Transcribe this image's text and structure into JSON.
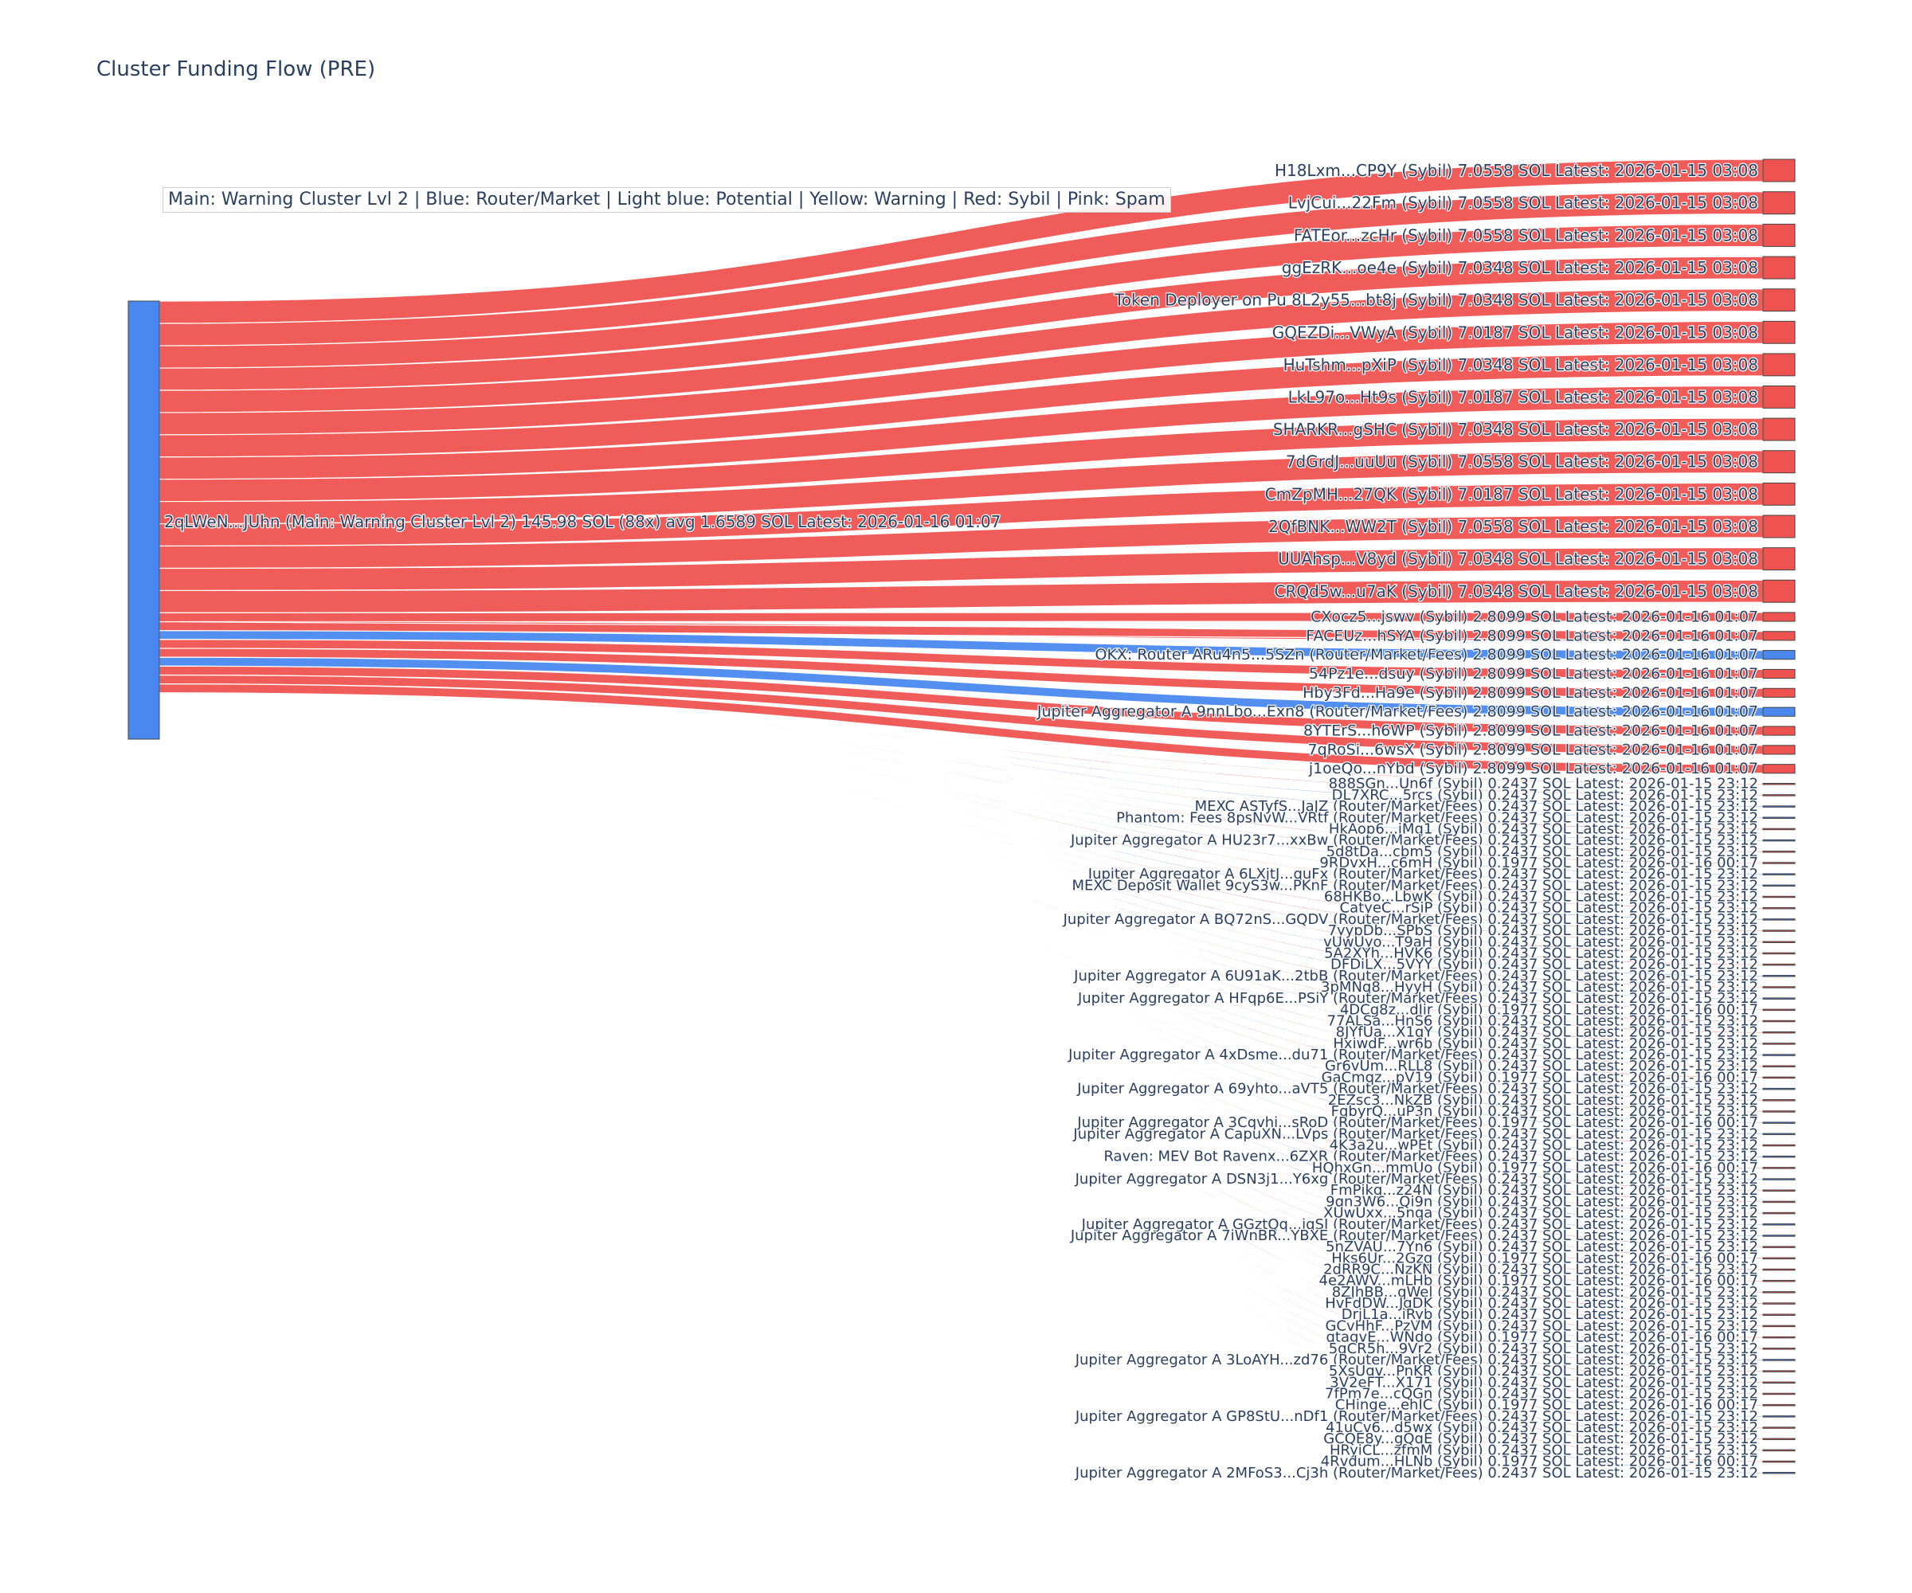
{
  "chart_title": "Cluster Funding Flow (PRE)",
  "legend_text": "Main: Warning Cluster Lvl 2  |  Blue: Router/Market | Light blue: Potential | Yellow: Warning | Red: Sybil | Pink: Spam",
  "colors": {
    "sybil": "#ef5350",
    "router": "#4a88f0",
    "text": "#2a3f5f"
  },
  "chart_data": {
    "type": "sankey",
    "title": "Cluster Funding Flow (PRE)",
    "source": {
      "label": "2qLWeN...JUhn (Main: Warning Cluster Lvl 2) 145.98 SOL (88x) avg 1.6589 SOL Latest: 2026-01-16 01:07",
      "category": "router",
      "total_sol": 145.98,
      "count": 88,
      "avg_sol": 1.6589
    },
    "targets": [
      {
        "label": "H18Lxm...CP9Y (Sybil) 7.0558 SOL Latest: 2026-01-15 03:08",
        "value": 7.0558,
        "category": "sybil"
      },
      {
        "label": "LvjCui...22Fm (Sybil) 7.0558 SOL Latest: 2026-01-15 03:08",
        "value": 7.0558,
        "category": "sybil"
      },
      {
        "label": "FATEor...zcHr (Sybil) 7.0558 SOL Latest: 2026-01-15 03:08",
        "value": 7.0558,
        "category": "sybil"
      },
      {
        "label": "ggEzRK...oe4e (Sybil) 7.0348 SOL Latest: 2026-01-15 03:08",
        "value": 7.0348,
        "category": "sybil"
      },
      {
        "label": "Token Deployer on Pu 8L2y55...bt8j (Sybil) 7.0348 SOL Latest: 2026-01-15 03:08",
        "value": 7.0348,
        "category": "sybil"
      },
      {
        "label": "GQEZDi...VWyA (Sybil) 7.0187 SOL Latest: 2026-01-15 03:08",
        "value": 7.0187,
        "category": "sybil"
      },
      {
        "label": "HuTshm...pXiP (Sybil) 7.0348 SOL Latest: 2026-01-15 03:08",
        "value": 7.0348,
        "category": "sybil"
      },
      {
        "label": "LkL97o...Ht9s (Sybil) 7.0187 SOL Latest: 2026-01-15 03:08",
        "value": 7.0187,
        "category": "sybil"
      },
      {
        "label": "SHARKR...gSHC (Sybil) 7.0348 SOL Latest: 2026-01-15 03:08",
        "value": 7.0348,
        "category": "sybil"
      },
      {
        "label": "7dGrdJ...uuUu (Sybil) 7.0558 SOL Latest: 2026-01-15 03:08",
        "value": 7.0558,
        "category": "sybil"
      },
      {
        "label": "CmZpMH...27QK (Sybil) 7.0187 SOL Latest: 2026-01-15 03:08",
        "value": 7.0187,
        "category": "sybil"
      },
      {
        "label": "2QfBNK...WW2T (Sybil) 7.0558 SOL Latest: 2026-01-15 03:08",
        "value": 7.0558,
        "category": "sybil"
      },
      {
        "label": "UUAhsp...V8yd (Sybil) 7.0348 SOL Latest: 2026-01-15 03:08",
        "value": 7.0348,
        "category": "sybil"
      },
      {
        "label": "CRQd5w...u7aK (Sybil) 7.0348 SOL Latest: 2026-01-15 03:08",
        "value": 7.0348,
        "category": "sybil"
      },
      {
        "label": "CXocz5...jswv (Sybil) 2.8099 SOL Latest: 2026-01-16 01:07",
        "value": 2.8099,
        "category": "sybil"
      },
      {
        "label": "FACEUz...hSYA (Sybil) 2.8099 SOL Latest: 2026-01-16 01:07",
        "value": 2.8099,
        "category": "sybil"
      },
      {
        "label": "OKX: Router ARu4n5...5SZn (Router/Market/Fees) 2.8099 SOL Latest: 2026-01-16 01:07",
        "value": 2.8099,
        "category": "router"
      },
      {
        "label": "54Pz1e...dsuy (Sybil) 2.8099 SOL Latest: 2026-01-16 01:07",
        "value": 2.8099,
        "category": "sybil"
      },
      {
        "label": "Hby3Fd...Ha9e (Sybil) 2.8099 SOL Latest: 2026-01-16 01:07",
        "value": 2.8099,
        "category": "sybil"
      },
      {
        "label": "Jupiter Aggregator A 9nnLbo...Exn8 (Router/Market/Fees) 2.8099 SOL Latest: 2026-01-16 01:07",
        "value": 2.8099,
        "category": "router"
      },
      {
        "label": "8YTErS...h6WP (Sybil) 2.8099 SOL Latest: 2026-01-16 01:07",
        "value": 2.8099,
        "category": "sybil"
      },
      {
        "label": "7qRoSi...6wsX (Sybil) 2.8099 SOL Latest: 2026-01-16 01:07",
        "value": 2.8099,
        "category": "sybil"
      },
      {
        "label": "j1oeQo...nYbd (Sybil) 2.8099 SOL Latest: 2026-01-16 01:07",
        "value": 2.8099,
        "category": "sybil"
      },
      {
        "label": "888SGn...Un6f (Sybil) 0.2437 SOL Latest: 2026-01-15 23:12",
        "value": 0.2437,
        "category": "sybil"
      },
      {
        "label": "DL7XRC...5rcs (Sybil) 0.2437 SOL Latest: 2026-01-15 23:12",
        "value": 0.2437,
        "category": "sybil"
      },
      {
        "label": "MEXC ASTyfS...JaJZ (Router/Market/Fees) 0.2437 SOL Latest: 2026-01-15 23:12",
        "value": 0.2437,
        "category": "router"
      },
      {
        "label": "Phantom: Fees 8psNvW...VRtf (Router/Market/Fees) 0.2437 SOL Latest: 2026-01-15 23:12",
        "value": 0.2437,
        "category": "router"
      },
      {
        "label": "HkAop6...iMq1 (Sybil) 0.2437 SOL Latest: 2026-01-15 23:12",
        "value": 0.2437,
        "category": "sybil"
      },
      {
        "label": "Jupiter Aggregator A HU23r7...xxBw (Router/Market/Fees) 0.2437 SOL Latest: 2026-01-15 23:12",
        "value": 0.2437,
        "category": "router"
      },
      {
        "label": "5d8tDa...cbm5 (Sybil) 0.2437 SOL Latest: 2026-01-15 23:12",
        "value": 0.2437,
        "category": "sybil"
      },
      {
        "label": "9RDvxH...c6mH (Sybil) 0.1977 SOL Latest: 2026-01-16 00:17",
        "value": 0.1977,
        "category": "sybil"
      },
      {
        "label": "Jupiter Aggregator A 6LXjtJ...quFx (Router/Market/Fees) 0.2437 SOL Latest: 2026-01-15 23:12",
        "value": 0.2437,
        "category": "router"
      },
      {
        "label": "MEXC Deposit Wallet 9cyS3w...PKnF (Router/Market/Fees) 0.2437 SOL Latest: 2026-01-15 23:12",
        "value": 0.2437,
        "category": "router"
      },
      {
        "label": "68HKBo...LbwK (Sybil) 0.2437 SOL Latest: 2026-01-15 23:12",
        "value": 0.2437,
        "category": "sybil"
      },
      {
        "label": "CatyeC...rSiP (Sybil) 0.2437 SOL Latest: 2026-01-15 23:12",
        "value": 0.2437,
        "category": "sybil"
      },
      {
        "label": "Jupiter Aggregator A BQ72nS...GQDV (Router/Market/Fees) 0.2437 SOL Latest: 2026-01-15 23:12",
        "value": 0.2437,
        "category": "router"
      },
      {
        "label": "7yypDb...SPbS (Sybil) 0.2437 SOL Latest: 2026-01-15 23:12",
        "value": 0.2437,
        "category": "sybil"
      },
      {
        "label": "vUwUyo...T9aH (Sybil) 0.2437 SOL Latest: 2026-01-15 23:12",
        "value": 0.2437,
        "category": "sybil"
      },
      {
        "label": "5A2XYh...HVK6 (Sybil) 0.2437 SOL Latest: 2026-01-15 23:12",
        "value": 0.2437,
        "category": "sybil"
      },
      {
        "label": "DFDiLX...5VYY (Sybil) 0.2437 SOL Latest: 2026-01-15 23:12",
        "value": 0.2437,
        "category": "sybil"
      },
      {
        "label": "Jupiter Aggregator A 6U91aK...2tbB (Router/Market/Fees) 0.2437 SOL Latest: 2026-01-15 23:12",
        "value": 0.2437,
        "category": "router"
      },
      {
        "label": "3pMNq8...HyyH (Sybil) 0.2437 SOL Latest: 2026-01-15 23:12",
        "value": 0.2437,
        "category": "sybil"
      },
      {
        "label": "Jupiter Aggregator A HFqp6E...PSiY (Router/Market/Fees) 0.2437 SOL Latest: 2026-01-15 23:12",
        "value": 0.2437,
        "category": "router"
      },
      {
        "label": "4DCg8z...dIir (Sybil) 0.1977 SOL Latest: 2026-01-16 00:17",
        "value": 0.1977,
        "category": "sybil"
      },
      {
        "label": "77ALSa...HnS6 (Sybil) 0.2437 SOL Latest: 2026-01-15 23:12",
        "value": 0.2437,
        "category": "sybil"
      },
      {
        "label": "8JYfUa...X1qY (Sybil) 0.2437 SOL Latest: 2026-01-15 23:12",
        "value": 0.2437,
        "category": "sybil"
      },
      {
        "label": "HxiwdF...wr6b (Sybil) 0.2437 SOL Latest: 2026-01-15 23:12",
        "value": 0.2437,
        "category": "sybil"
      },
      {
        "label": "Jupiter Aggregator A 4xDsme...du71 (Router/Market/Fees) 0.2437 SOL Latest: 2026-01-15 23:12",
        "value": 0.2437,
        "category": "router"
      },
      {
        "label": "Gr6vUm...RLL8 (Sybil) 0.2437 SOL Latest: 2026-01-15 23:12",
        "value": 0.2437,
        "category": "sybil"
      },
      {
        "label": "GaCmqz...pV19 (Sybil) 0.1977 SOL Latest: 2026-01-16 00:17",
        "value": 0.1977,
        "category": "sybil"
      },
      {
        "label": "Jupiter Aggregator A 69yhto...aVT5 (Router/Market/Fees) 0.2437 SOL Latest: 2026-01-15 23:12",
        "value": 0.2437,
        "category": "router"
      },
      {
        "label": "2EZsc3...NkZB (Sybil) 0.2437 SOL Latest: 2026-01-15 23:12",
        "value": 0.2437,
        "category": "sybil"
      },
      {
        "label": "FqbyrQ...uP3n (Sybil) 0.2437 SOL Latest: 2026-01-15 23:12",
        "value": 0.2437,
        "category": "sybil"
      },
      {
        "label": "Jupiter Aggregator A 3Cqvhi...sRoD (Router/Market/Fees) 0.1977 SOL Latest: 2026-01-16 00:17",
        "value": 0.1977,
        "category": "router"
      },
      {
        "label": "Jupiter Aggregator A CapuXN...LVps (Router/Market/Fees) 0.2437 SOL Latest: 2026-01-15 23:12",
        "value": 0.2437,
        "category": "router"
      },
      {
        "label": "4K3a2u...wPEt (Sybil) 0.2437 SOL Latest: 2026-01-15 23:12",
        "value": 0.2437,
        "category": "sybil"
      },
      {
        "label": "Raven: MEV Bot Ravenx...6ZXR (Router/Market/Fees) 0.2437 SOL Latest: 2026-01-15 23:12",
        "value": 0.2437,
        "category": "router"
      },
      {
        "label": "HQhxGn...mmUo (Sybil) 0.1977 SOL Latest: 2026-01-16 00:17",
        "value": 0.1977,
        "category": "sybil"
      },
      {
        "label": "Jupiter Aggregator A DSN3j1...Y6xg (Router/Market/Fees) 0.2437 SOL Latest: 2026-01-15 23:12",
        "value": 0.2437,
        "category": "router"
      },
      {
        "label": "FmPjkg...z24N (Sybil) 0.2437 SOL Latest: 2026-01-15 23:12",
        "value": 0.2437,
        "category": "sybil"
      },
      {
        "label": "9qn3W6...Qi9n (Sybil) 0.2437 SOL Latest: 2026-01-15 23:12",
        "value": 0.2437,
        "category": "sybil"
      },
      {
        "label": "XUwUxx...5nqa (Sybil) 0.2437 SOL Latest: 2026-01-15 23:12",
        "value": 0.2437,
        "category": "sybil"
      },
      {
        "label": "Jupiter Aggregator A GGztQq...iqSJ (Router/Market/Fees) 0.2437 SOL Latest: 2026-01-15 23:12",
        "value": 0.2437,
        "category": "router"
      },
      {
        "label": "Jupiter Aggregator A 7iWnBR...YBXE (Router/Market/Fees) 0.2437 SOL Latest: 2026-01-15 23:12",
        "value": 0.2437,
        "category": "router"
      },
      {
        "label": "5nZVAU...7Yn6 (Sybil) 0.2437 SOL Latest: 2026-01-15 23:12",
        "value": 0.2437,
        "category": "sybil"
      },
      {
        "label": "Hks6Ur...2Gzg (Sybil) 0.1977 SOL Latest: 2026-01-16 00:17",
        "value": 0.1977,
        "category": "sybil"
      },
      {
        "label": "2dRR9C...NzKN (Sybil) 0.2437 SOL Latest: 2026-01-15 23:12",
        "value": 0.2437,
        "category": "sybil"
      },
      {
        "label": "4e2AWV...mLHb (Sybil) 0.1977 SOL Latest: 2026-01-16 00:17",
        "value": 0.1977,
        "category": "sybil"
      },
      {
        "label": "8ZJhBB...qWel (Sybil) 0.2437 SOL Latest: 2026-01-15 23:12",
        "value": 0.2437,
        "category": "sybil"
      },
      {
        "label": "HvFdDW...JgDK (Sybil) 0.2437 SOL Latest: 2026-01-15 23:12",
        "value": 0.2437,
        "category": "sybil"
      },
      {
        "label": "DrjL1a...iRyb (Sybil) 0.2437 SOL Latest: 2026-01-15 23:12",
        "value": 0.2437,
        "category": "sybil"
      },
      {
        "label": "GCvHhF...PzVM (Sybil) 0.2437 SOL Latest: 2026-01-15 23:12",
        "value": 0.2437,
        "category": "sybil"
      },
      {
        "label": "qtagvE...WNdo (Sybil) 0.1977 SOL Latest: 2026-01-16 00:17",
        "value": 0.1977,
        "category": "sybil"
      },
      {
        "label": "5qCR5h...9Vr2 (Sybil) 0.2437 SOL Latest: 2026-01-15 23:12",
        "value": 0.2437,
        "category": "sybil"
      },
      {
        "label": "Jupiter Aggregator A 3LoAYH...zd76 (Router/Market/Fees) 0.2437 SOL Latest: 2026-01-15 23:12",
        "value": 0.2437,
        "category": "router"
      },
      {
        "label": "5XsUgv...PnKR (Sybil) 0.2437 SOL Latest: 2026-01-15 23:12",
        "value": 0.2437,
        "category": "sybil"
      },
      {
        "label": "3V2eFT...X171 (Sybil) 0.2437 SOL Latest: 2026-01-15 23:12",
        "value": 0.2437,
        "category": "sybil"
      },
      {
        "label": "7fPm7e...cQGn (Sybil) 0.2437 SOL Latest: 2026-01-15 23:12",
        "value": 0.2437,
        "category": "sybil"
      },
      {
        "label": "CHinge...ehJC (Sybil) 0.1977 SOL Latest: 2026-01-16 00:17",
        "value": 0.1977,
        "category": "sybil"
      },
      {
        "label": "Jupiter Aggregator A GP8StU...nDf1 (Router/Market/Fees) 0.2437 SOL Latest: 2026-01-15 23:12",
        "value": 0.2437,
        "category": "router"
      },
      {
        "label": "41uCv6...d5wx (Sybil) 0.2437 SOL Latest: 2026-01-15 23:12",
        "value": 0.2437,
        "category": "sybil"
      },
      {
        "label": "GCQE8y...gQqE (Sybil) 0.2437 SOL Latest: 2026-01-15 23:12",
        "value": 0.2437,
        "category": "sybil"
      },
      {
        "label": "HRyiCL...zfmM (Sybil) 0.2437 SOL Latest: 2026-01-15 23:12",
        "value": 0.2437,
        "category": "sybil"
      },
      {
        "label": "4Rvdum...HLNb (Sybil) 0.1977 SOL Latest: 2026-01-16 00:17",
        "value": 0.1977,
        "category": "sybil"
      },
      {
        "label": "Jupiter Aggregator A 2MFoS3...Cj3h (Router/Market/Fees) 0.2437 SOL Latest: 2026-01-15 23:12",
        "value": 0.2437,
        "category": "router"
      }
    ]
  }
}
